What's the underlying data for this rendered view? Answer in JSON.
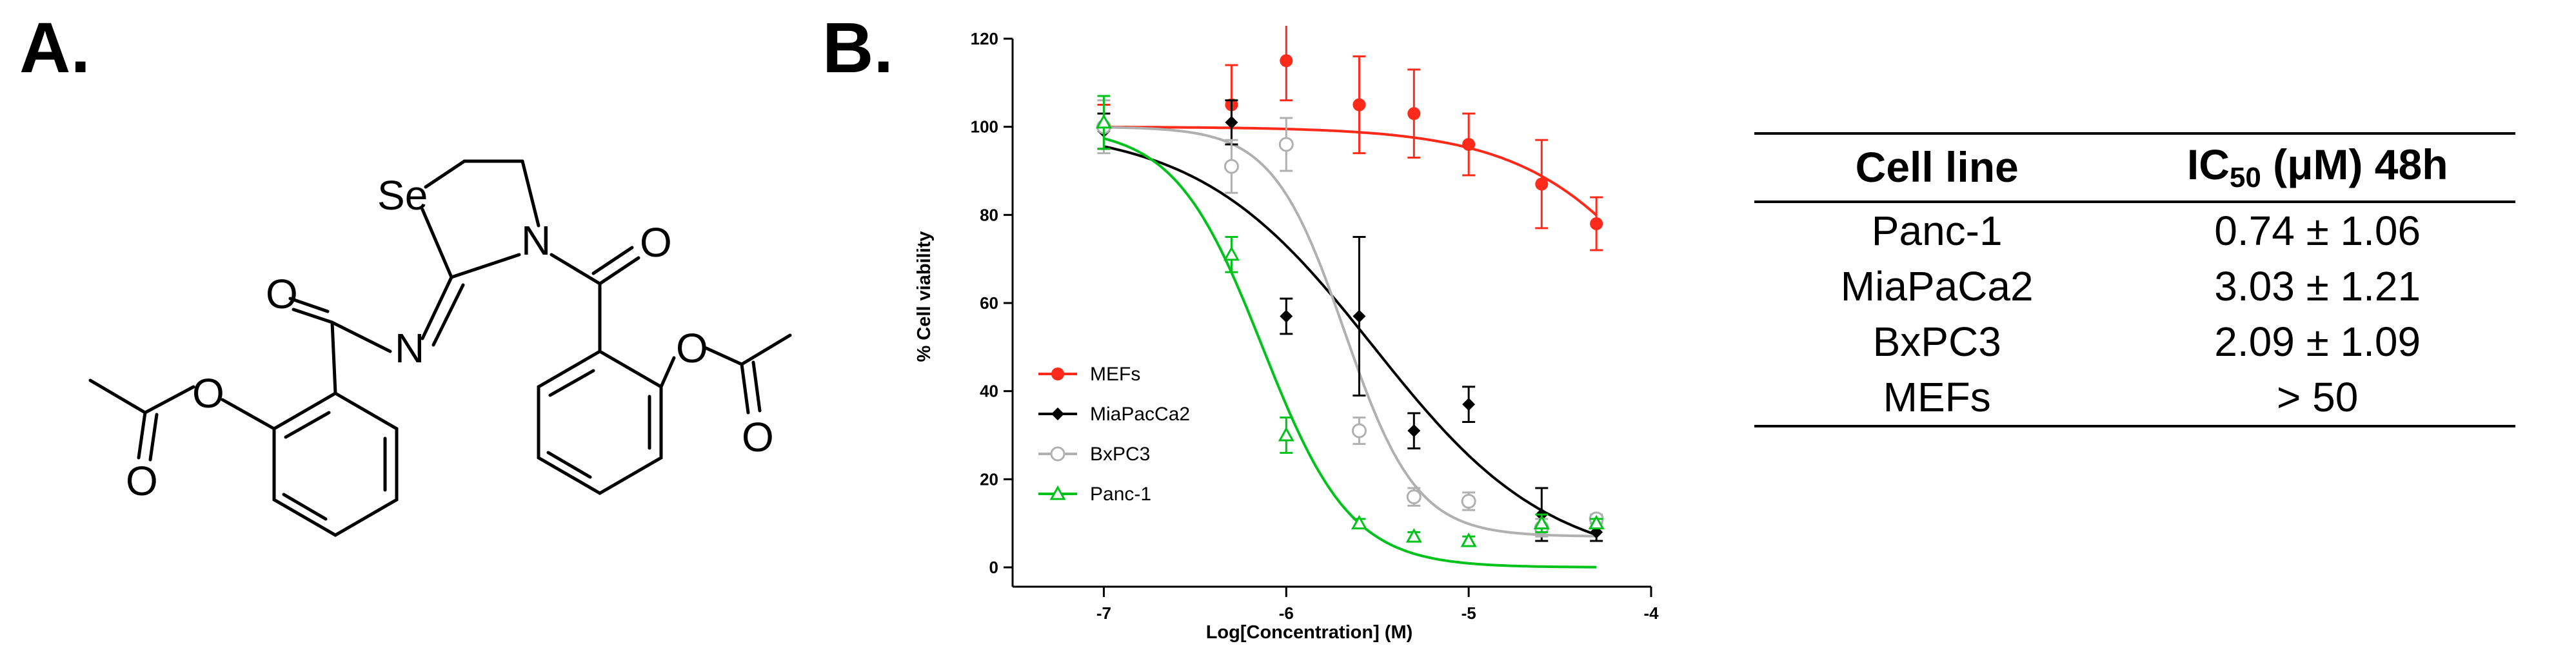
{
  "panels": {
    "a_label": "A.",
    "b_label": "B."
  },
  "molecule": {
    "atoms": {
      "se": "Se",
      "n_ring": "N",
      "n_imine": "N",
      "o_amide": "O",
      "o_ketone": "O",
      "o_ester_left": "O",
      "o_carbonyl_left": "O",
      "o_ester_right": "O",
      "o_carbonyl_right": "O"
    }
  },
  "chart_data": {
    "type": "scatter",
    "xlabel": "Log[Concentration] (M)",
    "ylabel": "% Cell viability",
    "xlim": [
      -7.5,
      -4
    ],
    "ylim": [
      0,
      120
    ],
    "x_ticks": [
      -7,
      -6,
      -5,
      -4
    ],
    "x_tick_labels": [
      "-7",
      "-6",
      "-5",
      "-4"
    ],
    "y_ticks": [
      0,
      20,
      40,
      60,
      80,
      100,
      120
    ],
    "y_tick_labels": [
      "0",
      "20",
      "40",
      "60",
      "80",
      "100",
      "120"
    ],
    "legend_position": "left-lower",
    "series": [
      {
        "name": "MEFs",
        "color": "#ff2a1a",
        "marker": "filled-circle",
        "x": [
          -7,
          -6.3,
          -6,
          -5.6,
          -5.3,
          -5,
          -4.6,
          -4.3
        ],
        "y": [
          100,
          105,
          115,
          105,
          103,
          96,
          87,
          78
        ],
        "err": [
          5,
          9,
          9,
          11,
          10,
          7,
          10,
          6
        ],
        "fit": {
          "top": 100,
          "bottom": 0,
          "logec50": -3.7,
          "hill": 1.0
        }
      },
      {
        "name": "MiaPacCa2",
        "color": "#000000",
        "marker": "filled-diamond",
        "x": [
          -7,
          -6.3,
          -6,
          -5.6,
          -5.3,
          -5,
          -4.6,
          -4.3
        ],
        "y": [
          99,
          101,
          57,
          57,
          31,
          37,
          12,
          8
        ],
        "err": [
          4,
          5,
          4,
          18,
          4,
          4,
          6,
          2
        ],
        "fit": {
          "top": 100,
          "bottom": 0,
          "logec50": -5.52,
          "hill": 0.9
        }
      },
      {
        "name": "BxPC3",
        "color": "#b0b0b0",
        "marker": "open-circle",
        "x": [
          -7,
          -6.3,
          -6,
          -5.6,
          -5.3,
          -5,
          -4.6,
          -4.3
        ],
        "y": [
          100,
          91,
          96,
          31,
          16,
          15,
          9,
          11
        ],
        "err": [
          6,
          6,
          6,
          3,
          2,
          2,
          2,
          1
        ],
        "fit": {
          "top": 100,
          "bottom": 7,
          "logec50": -5.68,
          "hill": 2.2
        }
      },
      {
        "name": "Panc-1",
        "color": "#00c21a",
        "marker": "open-triangle",
        "x": [
          -7,
          -6.3,
          -6,
          -5.6,
          -5.3,
          -5,
          -4.6,
          -4.3
        ],
        "y": [
          101,
          71,
          30,
          10,
          7,
          6,
          10,
          10
        ],
        "err": [
          6,
          4,
          4,
          1,
          1,
          1,
          2,
          1
        ],
        "fit": {
          "top": 100,
          "bottom": 0,
          "logec50": -6.13,
          "hill": 1.8
        }
      }
    ]
  },
  "table": {
    "header_cell_line": "Cell line",
    "header_ic50_prefix": "IC",
    "header_ic50_sub": "50",
    "header_ic50_suffix": " (μM) 48h",
    "rows": [
      {
        "cell_line": "Panc-1",
        "ic50": "0.74 ± 1.06"
      },
      {
        "cell_line": "MiaPaCa2",
        "ic50": "3.03 ± 1.21"
      },
      {
        "cell_line": "BxPC3",
        "ic50": "2.09 ± 1.09"
      },
      {
        "cell_line": "MEFs",
        "ic50": "> 50"
      }
    ]
  }
}
